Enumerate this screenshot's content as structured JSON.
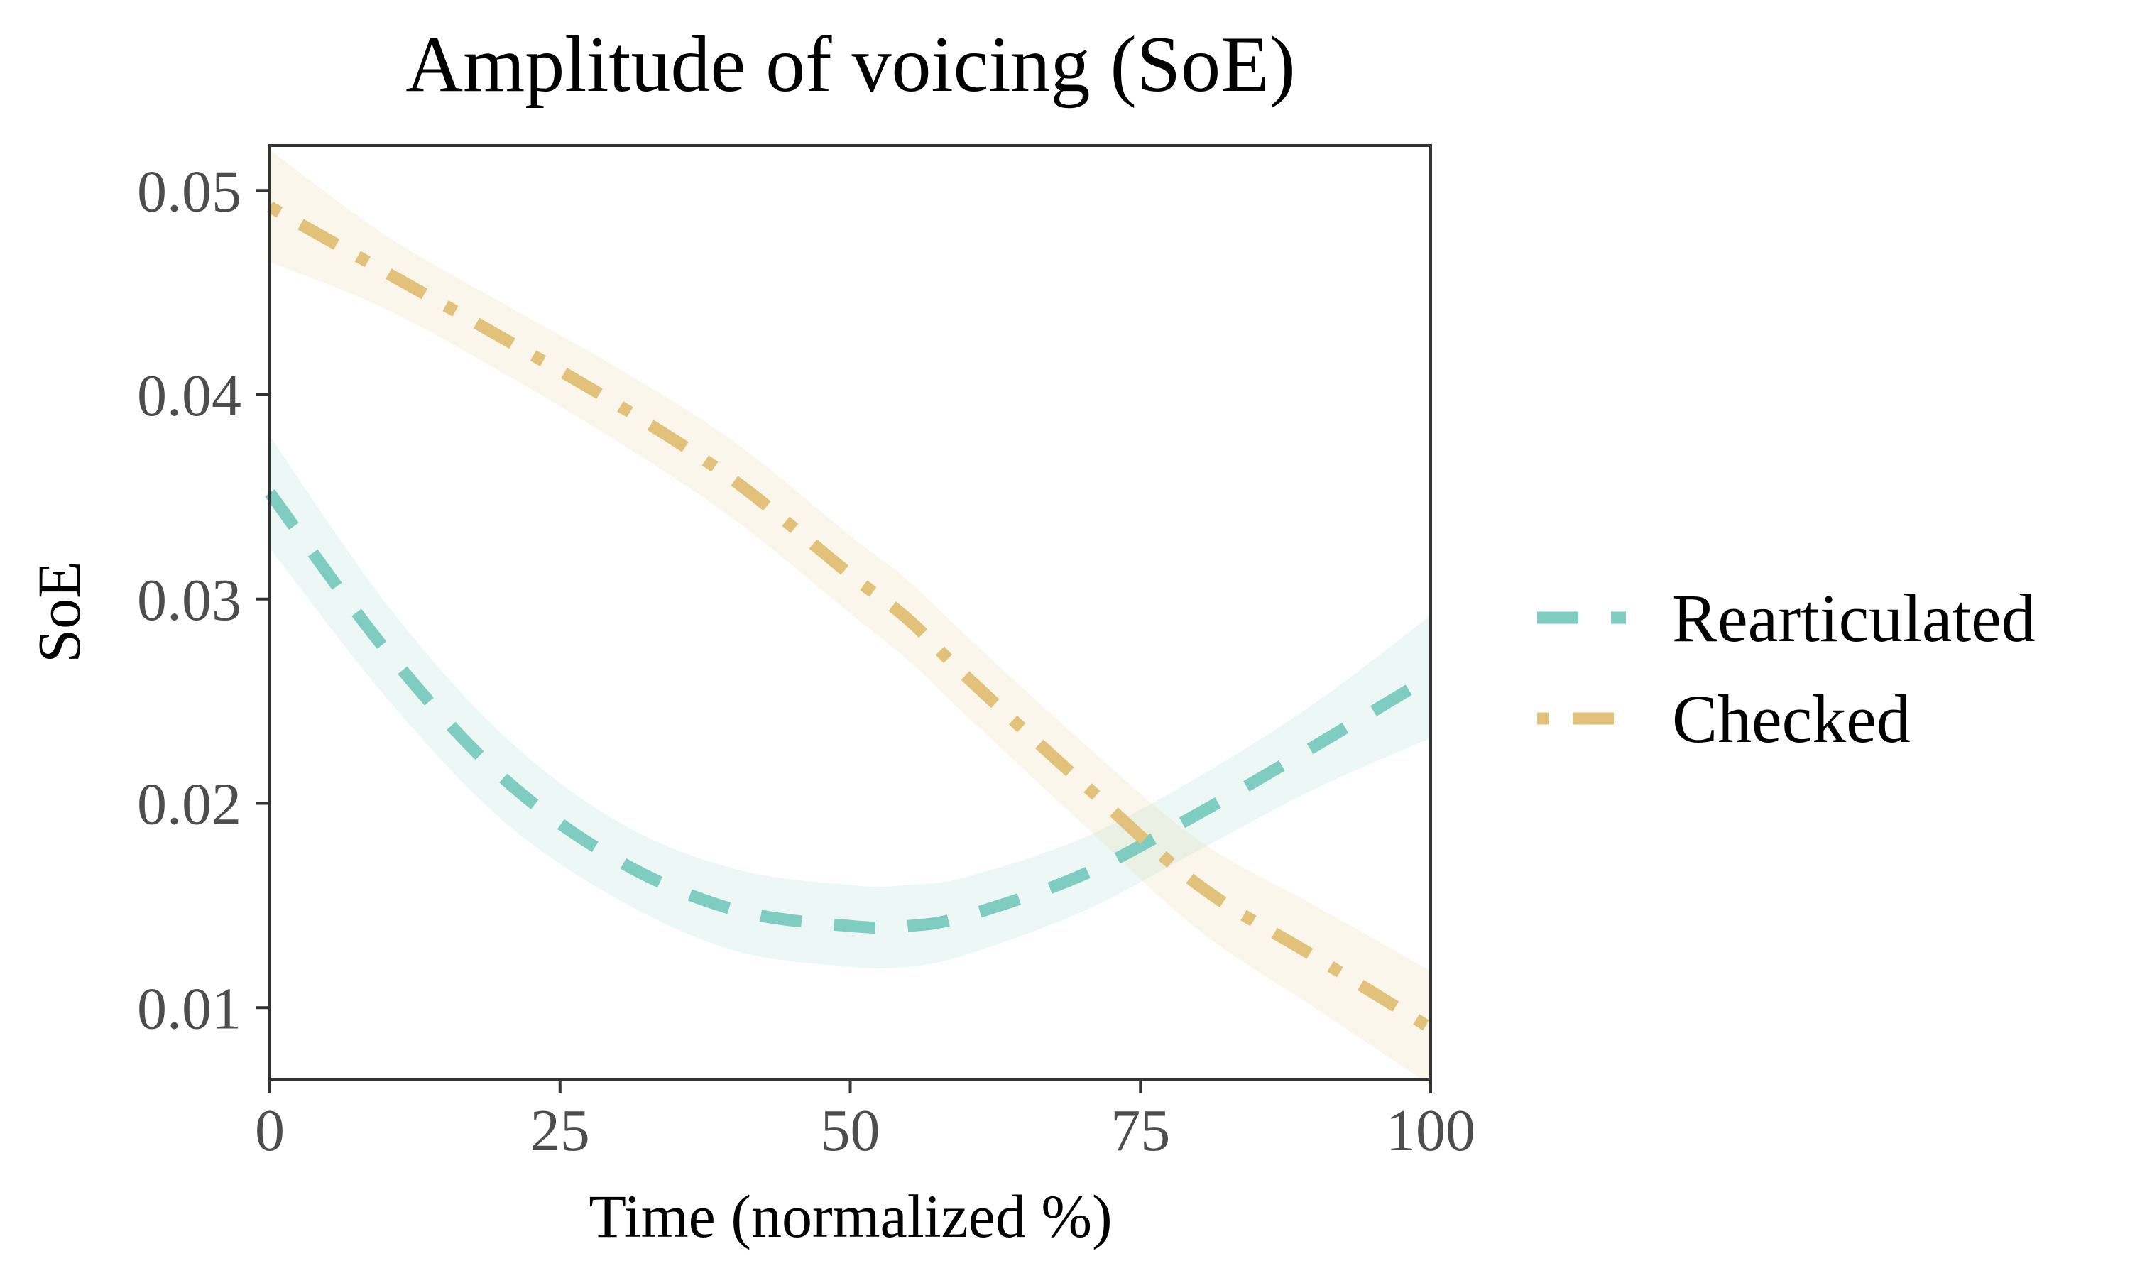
{
  "chart_data": {
    "type": "line",
    "title": "Amplitude of voicing (SoE)",
    "xlabel": "Time (normalized %)",
    "ylabel": "SoE",
    "xlim": [
      0,
      100
    ],
    "ylim": [
      0.0065,
      0.0522
    ],
    "x_ticks": [
      0,
      25,
      50,
      75,
      100
    ],
    "x_tick_labels": [
      "0",
      "25",
      "50",
      "75",
      "100"
    ],
    "y_ticks": [
      0.01,
      0.02,
      0.03,
      0.04,
      0.05
    ],
    "y_tick_labels": [
      "0.01",
      "0.02",
      "0.03",
      "0.04",
      "0.05"
    ],
    "grid": false,
    "legend_position": "right",
    "x": [
      0,
      10,
      20,
      30,
      40,
      50,
      55,
      60,
      70,
      80,
      90,
      100
    ],
    "series": [
      {
        "name": "Rearticulated",
        "color": "#7ecdc0",
        "dash": "dashed",
        "values": [
          0.0352,
          0.0275,
          0.0213,
          0.0172,
          0.0148,
          0.014,
          0.014,
          0.0145,
          0.0165,
          0.0195,
          0.0228,
          0.0262
        ],
        "ci_lower": [
          0.0325,
          0.0252,
          0.0192,
          0.0153,
          0.0128,
          0.012,
          0.012,
          0.0126,
          0.0147,
          0.0177,
          0.0207,
          0.0232
        ],
        "ci_upper": [
          0.038,
          0.0298,
          0.0234,
          0.0191,
          0.0168,
          0.016,
          0.016,
          0.0164,
          0.0183,
          0.0213,
          0.0249,
          0.0292
        ]
      },
      {
        "name": "Checked",
        "color": "#e2c27a",
        "dash": "dotdash",
        "values": [
          0.0492,
          0.046,
          0.0428,
          0.0395,
          0.0358,
          0.0312,
          0.029,
          0.0262,
          0.021,
          0.016,
          0.0125,
          0.009
        ],
        "ci_lower": [
          0.0465,
          0.0442,
          0.0411,
          0.0377,
          0.0339,
          0.0293,
          0.027,
          0.0243,
          0.019,
          0.0138,
          0.01,
          0.0062
        ],
        "ci_upper": [
          0.052,
          0.0478,
          0.0445,
          0.0413,
          0.0377,
          0.0331,
          0.0309,
          0.0282,
          0.023,
          0.0182,
          0.015,
          0.0118
        ]
      }
    ]
  }
}
